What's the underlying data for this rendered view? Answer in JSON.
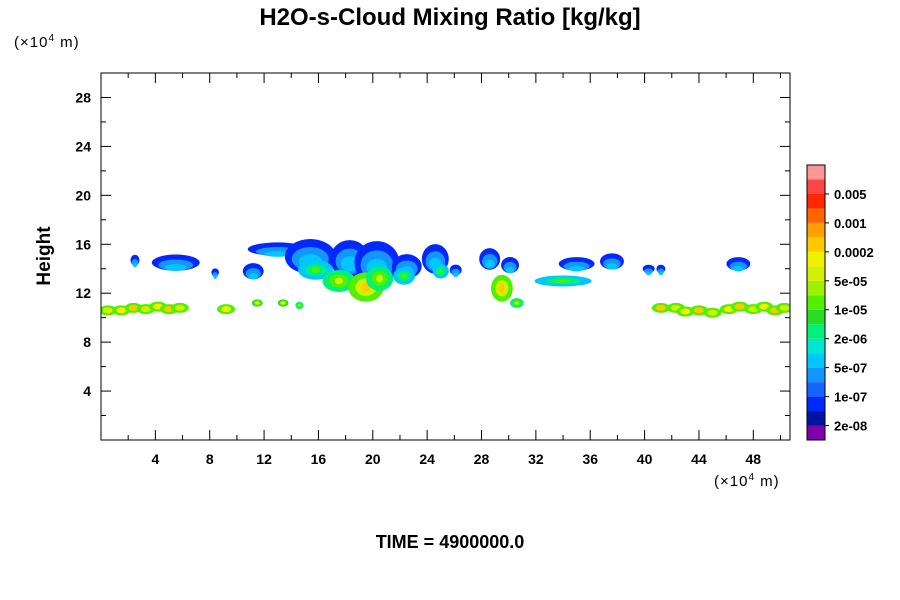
{
  "chart_data": {
    "type": "heatmap",
    "title": "H2O-s-Cloud Mixing Ratio [kg/kg]",
    "ylabel": "Height",
    "x_unit": "(×10",
    "x_unit_exp": "4",
    "x_unit_tail": " m)",
    "y_unit": "(×10",
    "y_unit_exp": "4",
    "y_unit_tail": " m)",
    "xlim": [
      0,
      50.7
    ],
    "ylim": [
      0,
      30
    ],
    "x_ticks": [
      4,
      8,
      12,
      16,
      20,
      24,
      28,
      32,
      36,
      40,
      44,
      48
    ],
    "y_ticks": [
      4,
      8,
      12,
      16,
      20,
      24,
      28
    ],
    "colorbar": {
      "levels": [
        "2e-08",
        "1e-07",
        "5e-07",
        "2e-06",
        "1e-05",
        "5e-05",
        "0.0002",
        "0.001",
        "0.005"
      ],
      "colors": [
        "#7f00aa",
        "#0014a0",
        "#0028ff",
        "#1464ff",
        "#1496ff",
        "#00c8ff",
        "#00e6d2",
        "#00f078",
        "#28dc28",
        "#50f000",
        "#a0f000",
        "#d2f000",
        "#f0f000",
        "#ffc800",
        "#ffa000",
        "#ff6400",
        "#ff2800",
        "#ff4646",
        "#ff9696"
      ]
    },
    "annotation_label": "TIME = ",
    "time": "4900000.0"
  }
}
